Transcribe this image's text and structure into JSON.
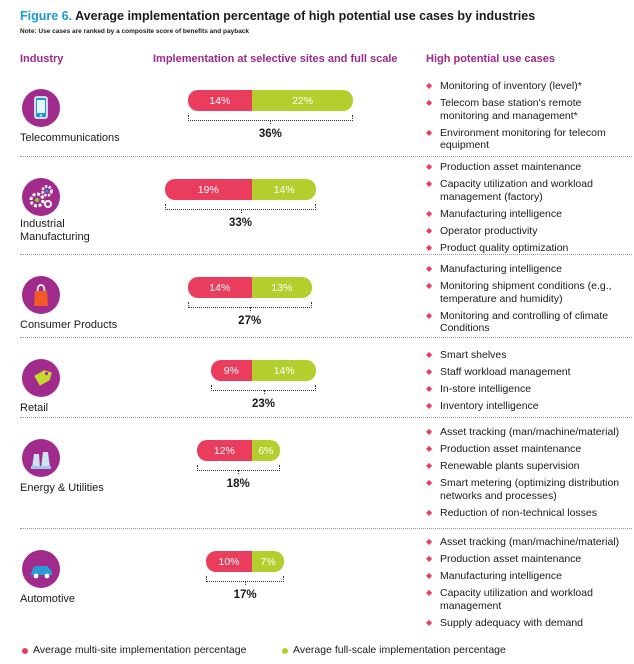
{
  "header": {
    "figure_label": "Figure 6.",
    "title_text": "Average implementation percentage of high potential use cases by industries",
    "note": "Note: Use cases are ranked by a composite score of benefits and payback"
  },
  "columns": {
    "industry": "Industry",
    "implementation": "Implementation at selective sites and full scale",
    "use_cases": "High potential use cases"
  },
  "colors": {
    "multi_site": "#ea3d5e",
    "full_scale": "#b3cf2e",
    "icon_bg": "#a12b8c",
    "header_text": "#9b2a8e",
    "accent_blue": "#1a9ad6"
  },
  "legend": {
    "multi_site": "Average multi-site implementation percentage",
    "full_scale": "Average full-scale implementation percentage"
  },
  "chart_data": {
    "type": "bar",
    "orientation": "horizontal-stacked",
    "categories": [
      "Telecommunications",
      "Industrial Manufacturing",
      "Consumer Products",
      "Retail",
      "Energy & Utilities",
      "Automotive"
    ],
    "series": [
      {
        "name": "Average multi-site implementation percentage",
        "values": [
          14,
          19,
          14,
          9,
          12,
          10
        ],
        "labels": [
          "14%",
          "19%",
          "14%",
          "9%",
          "12%",
          "10%"
        ]
      },
      {
        "name": "Average full-scale implementation percentage",
        "values": [
          22,
          14,
          13,
          14,
          6,
          7
        ],
        "labels": [
          "22%",
          "14%",
          "13%",
          "14%",
          "6%",
          "7%"
        ]
      }
    ],
    "totals": [
      "36%",
      "33%",
      "27%",
      "23%",
      "18%",
      "17%"
    ],
    "legend_position": "bottom"
  },
  "industries": [
    {
      "name_lines": [
        "Telecommunications"
      ],
      "icon": "smartphone-icon",
      "use_cases": [
        [
          "Monitoring of inventory (level)*"
        ],
        [
          "Telecom base station's remote",
          "monitoring and management*"
        ],
        [
          "Environment monitoring for telecom",
          "equipment"
        ]
      ]
    },
    {
      "name_lines": [
        "Industrial",
        "Manufacturing"
      ],
      "icon": "gears-icon",
      "use_cases": [
        [
          "Production asset maintenance"
        ],
        [
          "Capacity utilization and workload",
          "management (factory)"
        ],
        [
          "Manufacturing intelligence"
        ],
        [
          "Operator productivity"
        ],
        [
          "Product quality optimization"
        ]
      ]
    },
    {
      "name_lines": [
        "Consumer Products"
      ],
      "icon": "shopping-bag-icon",
      "use_cases": [
        [
          "Manufacturing intelligence"
        ],
        [
          "Monitoring shipment conditions (e.g.,",
          "temperature and humidity)"
        ],
        [
          "Monitoring and controlling of climate",
          "Conditions"
        ]
      ]
    },
    {
      "name_lines": [
        "Retail"
      ],
      "icon": "price-tag-icon",
      "use_cases": [
        [
          "Smart shelves"
        ],
        [
          "Staff workload management"
        ],
        [
          "In-store intelligence"
        ],
        [
          "Inventory intelligence"
        ]
      ]
    },
    {
      "name_lines": [
        "Energy & Utilities"
      ],
      "icon": "power-plant-icon",
      "use_cases": [
        [
          "Asset tracking (man/machine/material)"
        ],
        [
          "Production asset maintenance"
        ],
        [
          "Renewable plants supervision"
        ],
        [
          "Smart metering (optimizing distribution",
          "networks and processes)"
        ],
        [
          "Reduction of non-technical losses"
        ]
      ]
    },
    {
      "name_lines": [
        "Automotive"
      ],
      "icon": "car-icon",
      "use_cases": [
        [
          "Asset tracking (man/machine/material)"
        ],
        [
          "Production asset maintenance"
        ],
        [
          "Manufacturing intelligence"
        ],
        [
          "Capacity utilization and workload",
          "management"
        ],
        [
          "Supply adequacy with demand"
        ]
      ]
    }
  ]
}
